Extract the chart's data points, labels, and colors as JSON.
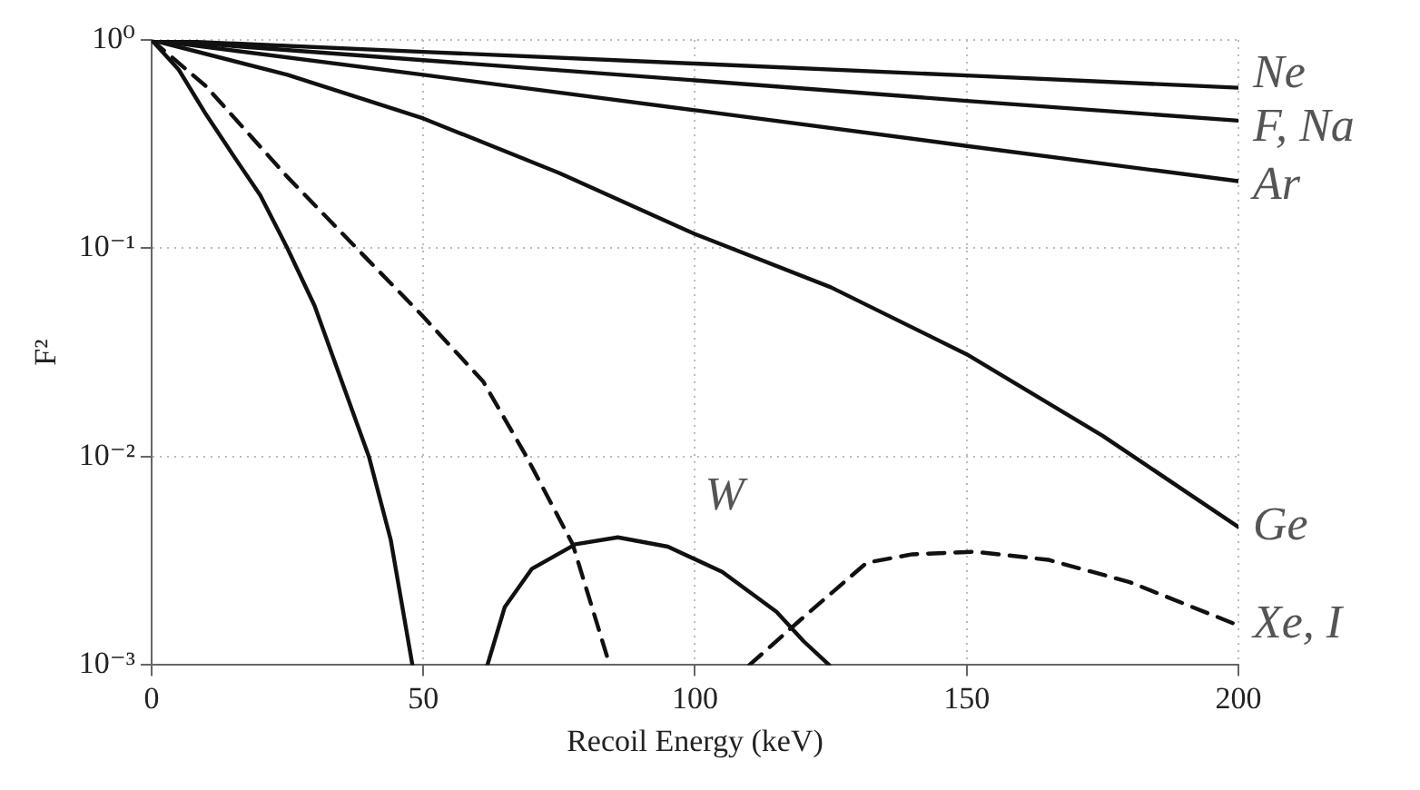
{
  "chart_data": {
    "type": "line",
    "xlabel": "Recoil Energy (keV)",
    "ylabel": "F²",
    "log": "y",
    "grid": true,
    "legend": false,
    "marker": "none",
    "xlim": [
      0,
      200
    ],
    "xticks": [
      0,
      50,
      100,
      150,
      200
    ],
    "ylim": [
      0.001,
      1
    ],
    "yticks": [
      {
        "value": 1,
        "label": "10⁰"
      },
      {
        "value": 0.1,
        "label": "10⁻¹"
      },
      {
        "value": 0.01,
        "label": "10⁻²"
      },
      {
        "value": 0.001,
        "label": "10⁻³"
      }
    ],
    "series": [
      {
        "name": "Ne",
        "color": "#111111",
        "line_style": "solid",
        "x": [
          0,
          50,
          100,
          150,
          200
        ],
        "values": [
          1,
          0.877,
          0.77,
          0.675,
          0.59
        ]
      },
      {
        "name": "F, Na",
        "color": "#111111",
        "line_style": "solid",
        "x": [
          0,
          50,
          100,
          150,
          200
        ],
        "values": [
          1,
          0.8,
          0.64,
          0.51,
          0.41
        ]
      },
      {
        "name": "Ar",
        "color": "#111111",
        "line_style": "solid",
        "x": [
          0,
          50,
          100,
          150,
          200
        ],
        "values": [
          1,
          0.68,
          0.46,
          0.31,
          0.21
        ]
      },
      {
        "name": "Ge",
        "color": "#111111",
        "line_style": "solid",
        "x": [
          0,
          25,
          50,
          75,
          100,
          125,
          150,
          175,
          200
        ],
        "values": [
          1,
          0.68,
          0.42,
          0.23,
          0.117,
          0.065,
          0.031,
          0.0126,
          0.0046
        ]
      },
      {
        "name": "Xe, I",
        "color": "#111111",
        "line_style": "dashed",
        "x": [
          0,
          10,
          25,
          40,
          50,
          61,
          69,
          77.5,
          84.3,
          97,
          110,
          120,
          131.6,
          140,
          151.5,
          165,
          180,
          200
        ],
        "values": [
          1,
          0.6,
          0.22,
          0.087,
          0.047,
          0.023,
          0.01,
          0.0038,
          0.001,
          null,
          0.001,
          0.0017,
          0.0031,
          0.0034,
          0.0035,
          0.0032,
          0.0025,
          0.00155
        ]
      },
      {
        "name": "W",
        "color": "#111111",
        "line_style": "solid",
        "x": [
          0,
          5,
          10,
          15,
          20,
          25,
          30,
          35,
          40,
          44,
          48,
          55,
          61.8,
          65,
          70,
          78,
          85.8,
          95,
          105,
          115,
          120,
          124.7
        ],
        "values": [
          1,
          0.72,
          0.44,
          0.28,
          0.18,
          0.1,
          0.053,
          0.023,
          0.01,
          0.004,
          0.001,
          null,
          0.001,
          0.0019,
          0.0029,
          0.0038,
          0.0041,
          0.0037,
          0.0028,
          0.0018,
          0.0013,
          0.001
        ]
      }
    ]
  }
}
